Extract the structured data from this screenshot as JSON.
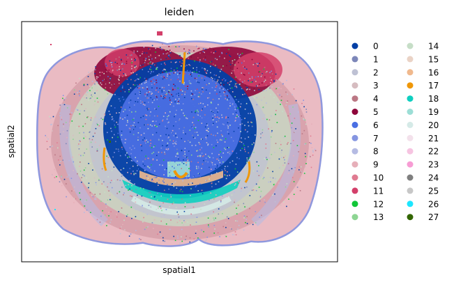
{
  "chart_data": {
    "type": "scatter",
    "title": "leiden",
    "xlabel": "spatial1",
    "ylabel": "spatial2",
    "ticks": "none",
    "grid": false,
    "legend_placement": "right-outside",
    "legend": {
      "columns": [
        [
          "0",
          "1",
          "2",
          "3",
          "4",
          "5",
          "6",
          "7",
          "8",
          "9",
          "10",
          "11",
          "12",
          "13"
        ],
        [
          "14",
          "15",
          "16",
          "17",
          "18",
          "19",
          "20",
          "21",
          "22",
          "23",
          "24",
          "25",
          "26",
          "27"
        ]
      ]
    },
    "clusters": [
      {
        "name": "0",
        "color": "#023fa5"
      },
      {
        "name": "1",
        "color": "#7d87b9"
      },
      {
        "name": "2",
        "color": "#bec1d4"
      },
      {
        "name": "3",
        "color": "#d6bcc0"
      },
      {
        "name": "4",
        "color": "#bb7784"
      },
      {
        "name": "5",
        "color": "#8e063b"
      },
      {
        "name": "6",
        "color": "#4a6fe3"
      },
      {
        "name": "7",
        "color": "#8595e1"
      },
      {
        "name": "8",
        "color": "#b5bbe3"
      },
      {
        "name": "9",
        "color": "#e6afb9"
      },
      {
        "name": "10",
        "color": "#e07b91"
      },
      {
        "name": "11",
        "color": "#d33f6a"
      },
      {
        "name": "12",
        "color": "#11c638"
      },
      {
        "name": "13",
        "color": "#8dd593"
      },
      {
        "name": "14",
        "color": "#c6dec7"
      },
      {
        "name": "15",
        "color": "#ead3c6"
      },
      {
        "name": "16",
        "color": "#f0b98d"
      },
      {
        "name": "17",
        "color": "#ef9708"
      },
      {
        "name": "18",
        "color": "#0fcfc0"
      },
      {
        "name": "19",
        "color": "#9cded6"
      },
      {
        "name": "20",
        "color": "#d5eae7"
      },
      {
        "name": "21",
        "color": "#f3e1eb"
      },
      {
        "name": "22",
        "color": "#f6c4e1"
      },
      {
        "name": "23",
        "color": "#f79cd4"
      },
      {
        "name": "24",
        "color": "#7f7f7f"
      },
      {
        "name": "25",
        "color": "#c7c7c7"
      },
      {
        "name": "26",
        "color": "#1ce6ff"
      },
      {
        "name": "27",
        "color": "#336600"
      }
    ]
  }
}
